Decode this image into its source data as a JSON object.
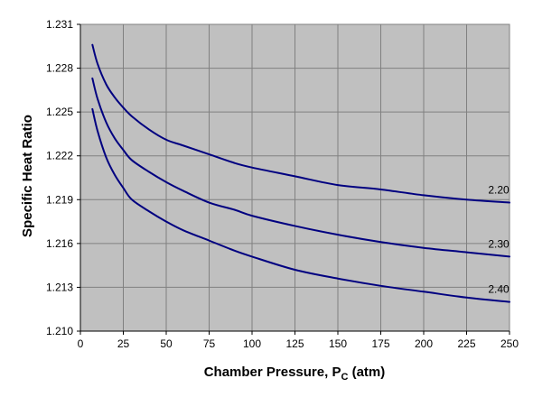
{
  "chart_data": {
    "type": "line",
    "title": "",
    "xlabel": {
      "main": "Chamber Pressure, P",
      "subscript": "C",
      "suffix": " (atm)"
    },
    "ylabel": "Specific Heat Ratio",
    "xlim": [
      0,
      250
    ],
    "ylim": [
      1.21,
      1.231
    ],
    "xticks": [
      0,
      25,
      50,
      75,
      100,
      125,
      150,
      175,
      200,
      225,
      250
    ],
    "xtick_labels": [
      "0",
      "25",
      "50",
      "75",
      "100",
      "125",
      "150",
      "175",
      "200",
      "225",
      "250"
    ],
    "yticks": [
      1.21,
      1.213,
      1.216,
      1.219,
      1.222,
      1.225,
      1.228,
      1.231
    ],
    "ytick_labels": [
      "1.210",
      "1.213",
      "1.216",
      "1.219",
      "1.222",
      "1.225",
      "1.228",
      "1.231"
    ],
    "grid": true,
    "legend": "none",
    "colors": {
      "plot_background": "#c0c0c0",
      "grid": "#808080",
      "series_line": "#000080"
    },
    "series": [
      {
        "name": "2.20",
        "x": [
          7,
          10,
          15,
          20,
          25,
          30,
          40,
          50,
          60,
          75,
          90,
          100,
          125,
          150,
          175,
          200,
          225,
          250
        ],
        "y": [
          1.2296,
          1.2283,
          1.2269,
          1.226,
          1.2253,
          1.2247,
          1.2238,
          1.2231,
          1.2227,
          1.2221,
          1.2215,
          1.2212,
          1.2206,
          1.22,
          1.2197,
          1.2193,
          1.219,
          1.2188
        ]
      },
      {
        "name": "2.30",
        "x": [
          7,
          10,
          15,
          20,
          25,
          30,
          40,
          50,
          60,
          75,
          90,
          100,
          125,
          150,
          175,
          200,
          225,
          250
        ],
        "y": [
          1.2273,
          1.2259,
          1.2243,
          1.2232,
          1.2224,
          1.2217,
          1.2209,
          1.2202,
          1.2196,
          1.2188,
          1.2183,
          1.2179,
          1.2172,
          1.2166,
          1.2161,
          1.2157,
          1.2154,
          1.2151
        ]
      },
      {
        "name": "2.40",
        "x": [
          7,
          10,
          15,
          20,
          25,
          30,
          40,
          50,
          60,
          75,
          90,
          100,
          125,
          150,
          175,
          200,
          225,
          250
        ],
        "y": [
          1.2252,
          1.2237,
          1.2219,
          1.2207,
          1.2198,
          1.219,
          1.2182,
          1.2175,
          1.2169,
          1.2162,
          1.2155,
          1.2151,
          1.2142,
          1.2136,
          1.2131,
          1.2127,
          1.2123,
          1.212
        ]
      }
    ]
  }
}
